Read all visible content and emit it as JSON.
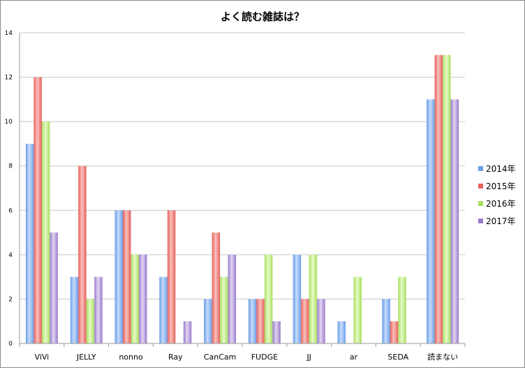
{
  "chart_data": {
    "type": "bar",
    "title": "よく読む雑誌は？",
    "xlabel": "",
    "ylabel": "",
    "categories": [
      "ViVi",
      "JELLY",
      "nonno",
      "Ray",
      "CanCam",
      "FUDGE",
      "JJ",
      "ar",
      "SEDA",
      "読まない"
    ],
    "series": [
      {
        "name": "2014年",
        "values": [
          9,
          3,
          6,
          3,
          2,
          2,
          4,
          1,
          2,
          11
        ]
      },
      {
        "name": "2015年",
        "values": [
          12,
          8,
          6,
          6,
          5,
          2,
          2,
          0,
          1,
          13
        ]
      },
      {
        "name": "2016年",
        "values": [
          10,
          2,
          4,
          0,
          3,
          4,
          4,
          3,
          3,
          13
        ]
      },
      {
        "name": "2017年",
        "values": [
          5,
          3,
          4,
          1,
          4,
          1,
          2,
          0,
          0,
          11
        ]
      }
    ],
    "ylim": [
      0,
      14
    ],
    "yticks": [
      0,
      2,
      4,
      6,
      8,
      10,
      12,
      14
    ],
    "grid": true,
    "legend_position": "right",
    "colors": {
      "2014年": {
        "light": "#c6dcfb",
        "dark": "#6a9ee8"
      },
      "2015年": {
        "light": "#fbc0bc",
        "dark": "#e4615c"
      },
      "2016年": {
        "light": "#e5fbc5",
        "dark": "#a9de62"
      },
      "2017年": {
        "light": "#e1d5f3",
        "dark": "#9a7bcb"
      }
    }
  }
}
